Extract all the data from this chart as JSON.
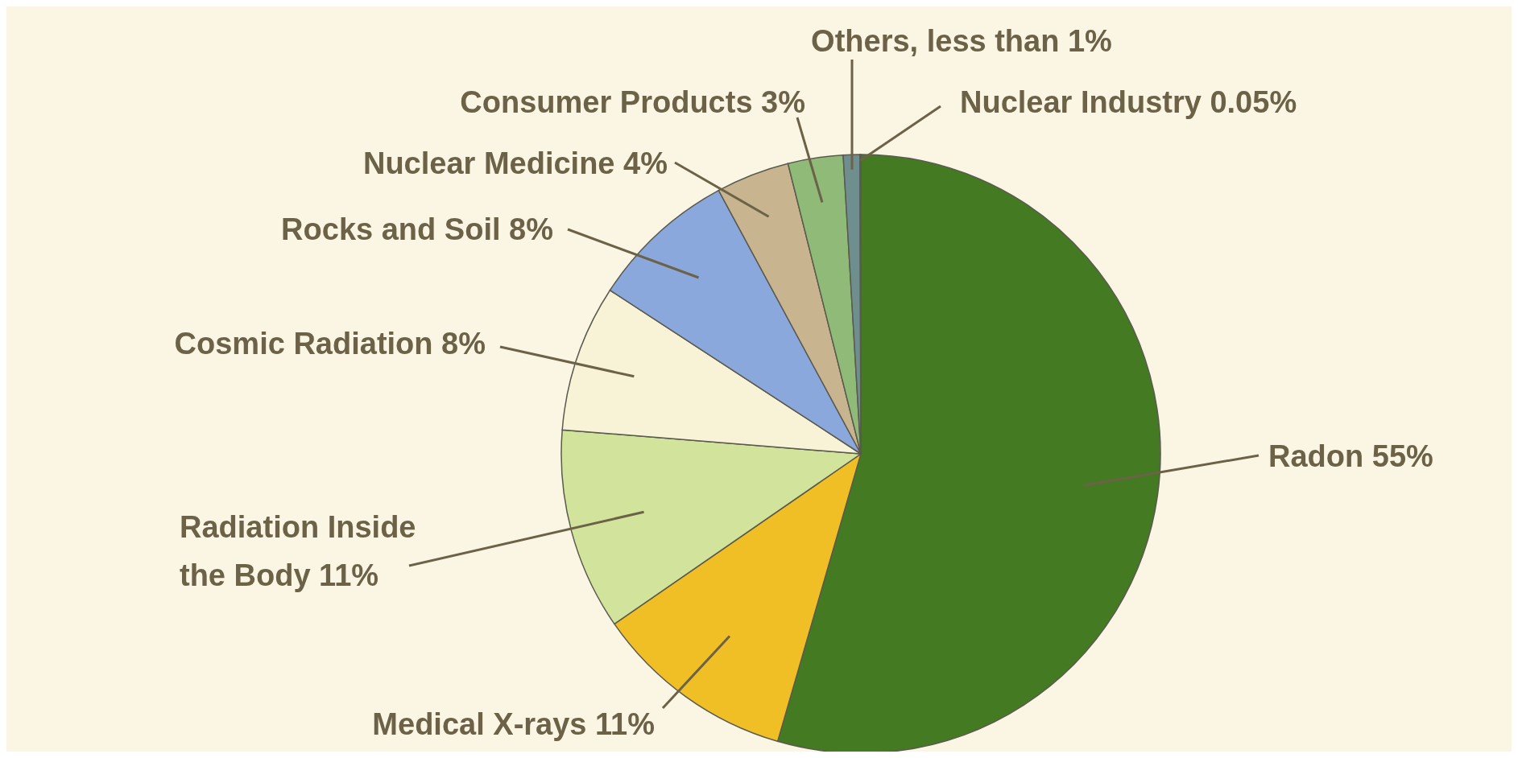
{
  "chart_data": {
    "type": "pie",
    "categories": [
      "Radon",
      "Medical X-rays",
      "Radiation Inside the Body",
      "Cosmic Radiation",
      "Rocks and Soil",
      "Nuclear Medicine",
      "Consumer Products",
      "Others",
      "Nuclear Industry"
    ],
    "values": [
      55,
      11,
      11,
      8,
      8,
      4,
      3,
      0.9,
      0.05
    ],
    "value_labels": [
      "55%",
      "11%",
      "11%",
      "8%",
      "8%",
      "4%",
      "3%",
      "less than 1%",
      "0.05%"
    ],
    "colors": [
      "#447a22",
      "#f0be25",
      "#d2e49c",
      "#f8f2d6",
      "#8aa8dc",
      "#c8b48e",
      "#8fba78",
      "#6f8f8f",
      "#9a9a8a"
    ]
  }
}
